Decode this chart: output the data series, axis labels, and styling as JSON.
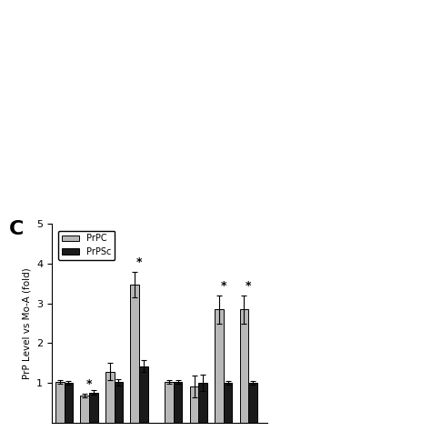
{
  "title": "C",
  "ylabel": "PrP Level vs Mo-A (fold)",
  "ylim": [
    0,
    5
  ],
  "yticks": [
    1,
    2,
    3,
    4,
    5
  ],
  "prpc_values": [
    1.02,
    0.68,
    1.28,
    3.48,
    1.02,
    0.9,
    2.85,
    2.85
  ],
  "prpsc_values": [
    1.0,
    0.75,
    1.02,
    1.42,
    1.02,
    1.0,
    1.0,
    1.0
  ],
  "prpc_errors": [
    0.04,
    0.05,
    0.22,
    0.32,
    0.04,
    0.28,
    0.35,
    0.35
  ],
  "prpsc_errors": [
    0.04,
    0.06,
    0.08,
    0.15,
    0.04,
    0.2,
    0.05,
    0.05
  ],
  "prpc_color": "#b8b8b8",
  "prpsc_color": "#1a1a1a",
  "asterisk_on_prpc": [
    false,
    true,
    false,
    true,
    false,
    false,
    true,
    true
  ],
  "asterisk_on_prpsc": [
    false,
    false,
    false,
    false,
    false,
    false,
    false,
    false
  ],
  "legend_labels": [
    "PrPC",
    "PrPSc"
  ],
  "bar_width": 0.28,
  "background_color": "#ffffff",
  "group_centers": [
    0.5,
    1.3,
    2.1,
    2.9,
    4.0,
    4.8,
    5.6,
    6.4
  ]
}
